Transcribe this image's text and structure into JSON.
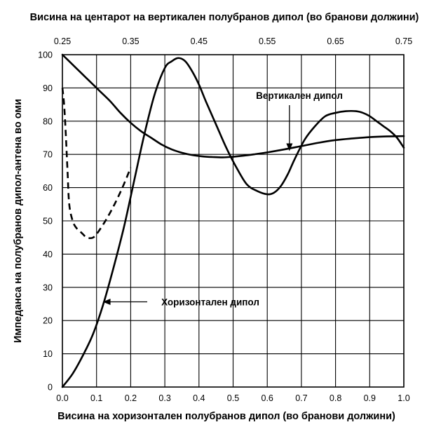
{
  "chart_data": {
    "type": "line",
    "title": "Висина на центарот на вертикален полубранов дипол (во бранови должини)",
    "xlabel": "Висина на хоризонтален полубранов дипол (во бранови должини)",
    "ylabel": "Импеданса на полубранов дипол-антена во оми",
    "xlim": [
      0,
      1.0
    ],
    "ylim": [
      0,
      100
    ],
    "x_ticks": [
      "0.0",
      "0.1",
      "0.2",
      "0.3",
      "0.4",
      "0.5",
      "0.6",
      "0.7",
      "0.8",
      "0.9",
      "1.0"
    ],
    "y_ticks": [
      "0",
      "10",
      "20",
      "30",
      "40",
      "50",
      "60",
      "70",
      "80",
      "90",
      "100"
    ],
    "x2lim": [
      0.25,
      0.75
    ],
    "x2_ticks": [
      "0.25",
      "0.35",
      "0.45",
      "0.55",
      "0.65",
      "0.75"
    ],
    "grid": true,
    "series": [
      {
        "name": "Хоризонтален дипол",
        "style": "solid",
        "x": [
          0.0,
          0.03,
          0.06,
          0.09,
          0.12,
          0.15,
          0.18,
          0.21,
          0.24,
          0.27,
          0.3,
          0.32,
          0.34,
          0.36,
          0.38,
          0.4,
          0.42,
          0.45,
          0.48,
          0.51,
          0.54,
          0.57,
          0.6,
          0.62,
          0.64,
          0.66,
          0.68,
          0.71,
          0.74,
          0.77,
          0.8,
          0.83,
          0.86,
          0.88,
          0.9,
          0.92,
          0.94,
          0.96,
          0.98,
          1.0
        ],
        "y": [
          0,
          4,
          9.5,
          16,
          25,
          36,
          48,
          62,
          76,
          88,
          96,
          98,
          99,
          98,
          95,
          91,
          86,
          79,
          72,
          66,
          61,
          59,
          58,
          58.5,
          60.5,
          64,
          68.5,
          74.5,
          78.5,
          81.5,
          82.5,
          83,
          83,
          82.5,
          81.5,
          80,
          78.5,
          77,
          75,
          72
        ]
      },
      {
        "name": "Вертикален дипол",
        "style": "solid",
        "x": [
          0.0,
          0.02,
          0.05,
          0.08,
          0.11,
          0.14,
          0.17,
          0.2,
          0.23,
          0.26,
          0.29,
          0.32,
          0.35,
          0.38,
          0.41,
          0.44,
          0.47,
          0.5,
          0.53,
          0.56,
          0.6,
          0.65,
          0.7,
          0.75,
          0.8,
          0.85,
          0.9,
          0.95,
          1.0
        ],
        "y": [
          100,
          98,
          95,
          92,
          89,
          86,
          82.5,
          79.5,
          77,
          75,
          73,
          71.5,
          70.5,
          69.8,
          69.4,
          69.2,
          69.1,
          69.3,
          69.6,
          70,
          70.6,
          71.5,
          72.5,
          73.5,
          74.3,
          74.8,
          75.2,
          75.4,
          75.5
        ]
      },
      {
        "name": "",
        "style": "dashed",
        "x": [
          0.0,
          0.005,
          0.01,
          0.015,
          0.02,
          0.03,
          0.04,
          0.05,
          0.06,
          0.07,
          0.08,
          0.09,
          0.1,
          0.12,
          0.14,
          0.16,
          0.18,
          0.2
        ],
        "y": [
          90,
          85,
          76,
          65,
          55,
          50,
          48,
          47,
          46,
          45,
          44.8,
          45,
          46,
          49,
          52.5,
          56.5,
          61,
          66
        ]
      }
    ],
    "annotations": [
      {
        "text": "Вертикален дипол",
        "arrow_to_x": 0.665,
        "arrow_to_y": 71
      },
      {
        "text": "Хоризонтален дипол",
        "arrow_to_x": 0.11,
        "arrow_to_y": 25
      }
    ]
  }
}
